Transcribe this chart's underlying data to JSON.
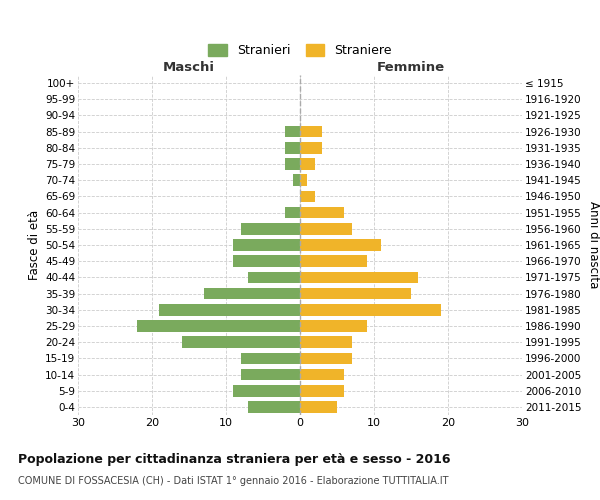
{
  "age_groups": [
    "0-4",
    "5-9",
    "10-14",
    "15-19",
    "20-24",
    "25-29",
    "30-34",
    "35-39",
    "40-44",
    "45-49",
    "50-54",
    "55-59",
    "60-64",
    "65-69",
    "70-74",
    "75-79",
    "80-84",
    "85-89",
    "90-94",
    "95-99",
    "100+"
  ],
  "birth_years": [
    "2011-2015",
    "2006-2010",
    "2001-2005",
    "1996-2000",
    "1991-1995",
    "1986-1990",
    "1981-1985",
    "1976-1980",
    "1971-1975",
    "1966-1970",
    "1961-1965",
    "1956-1960",
    "1951-1955",
    "1946-1950",
    "1941-1945",
    "1936-1940",
    "1931-1935",
    "1926-1930",
    "1921-1925",
    "1916-1920",
    "≤ 1915"
  ],
  "maschi": [
    7,
    9,
    8,
    8,
    16,
    22,
    19,
    13,
    7,
    9,
    9,
    8,
    2,
    0,
    1,
    2,
    2,
    2,
    0,
    0,
    0
  ],
  "femmine": [
    5,
    6,
    6,
    7,
    7,
    9,
    19,
    15,
    16,
    9,
    11,
    7,
    6,
    2,
    1,
    2,
    3,
    3,
    0,
    0,
    0
  ],
  "color_maschi": "#7aaa5d",
  "color_femmine": "#f0b429",
  "title": "Popolazione per cittadinanza straniera per età e sesso - 2016",
  "subtitle": "COMUNE DI FOSSACESIA (CH) - Dati ISTAT 1° gennaio 2016 - Elaborazione TUTTITALIA.IT",
  "xlabel_left": "Maschi",
  "xlabel_right": "Femmine",
  "ylabel_left": "Fasce di età",
  "ylabel_right": "Anni di nascita",
  "legend_maschi": "Stranieri",
  "legend_femmine": "Straniere",
  "xlim": 30,
  "background_color": "#ffffff",
  "grid_color": "#cccccc"
}
